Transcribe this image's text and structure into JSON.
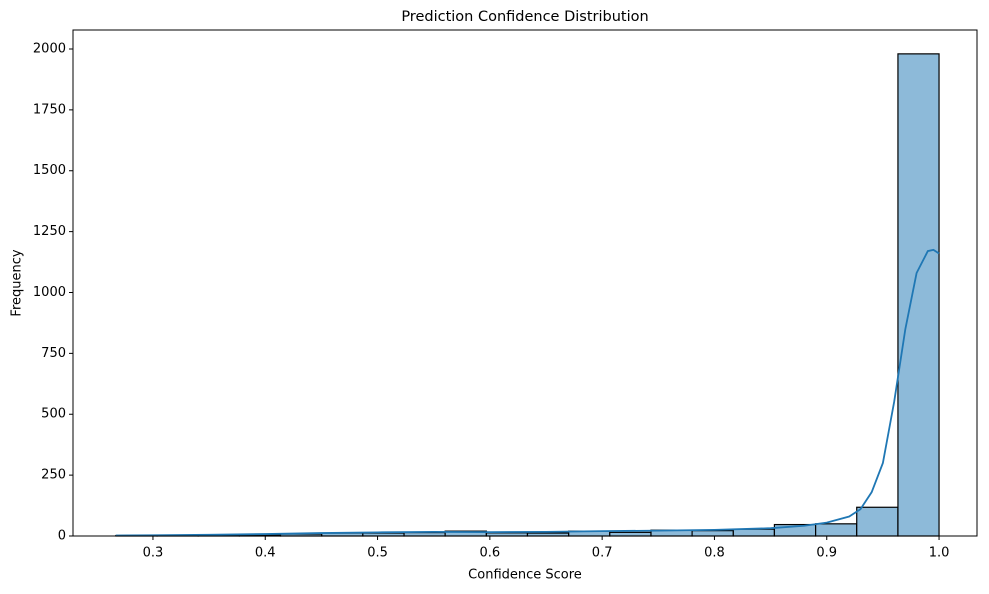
{
  "chart_data": {
    "type": "histogram",
    "title": "Prediction Confidence Distribution",
    "x_label": "Confidence Score",
    "y_label": "Frequency",
    "bins": [
      0.267,
      0.3037,
      0.3403,
      0.377,
      0.4136,
      0.4503,
      0.4869,
      0.5236,
      0.5602,
      0.5969,
      0.6335,
      0.6702,
      0.7068,
      0.7435,
      0.7801,
      0.8168,
      0.8534,
      0.8901,
      0.9267,
      0.9634,
      1.0
    ],
    "values": [
      2,
      1,
      3,
      5,
      8,
      12,
      12,
      14,
      20,
      13,
      12,
      20,
      15,
      24,
      22,
      28,
      47,
      50,
      118,
      1980
    ],
    "color": "#8dbad9",
    "edgecolor": "#000000",
    "kde": {
      "x": [
        0.267,
        0.3,
        0.35,
        0.4,
        0.45,
        0.5,
        0.55,
        0.6,
        0.65,
        0.7,
        0.75,
        0.8,
        0.85,
        0.88,
        0.9,
        0.92,
        0.93,
        0.94,
        0.95,
        0.96,
        0.97,
        0.98,
        0.99,
        0.995,
        1.0
      ],
      "y": [
        2,
        3,
        5,
        8,
        12,
        15,
        17,
        16,
        17,
        20,
        22,
        25,
        32,
        42,
        55,
        80,
        110,
        180,
        300,
        550,
        850,
        1080,
        1170,
        1175,
        1160
      ],
      "color": "#1f77b4"
    },
    "xlim": [
      0.2288,
      1.0338
    ],
    "ylim": [
      0,
      2078
    ],
    "xticks": [
      0.3,
      0.4,
      0.5,
      0.6,
      0.7,
      0.8,
      0.9,
      {
        "value": 1.0,
        "label": "1.0"
      }
    ],
    "yticks": [
      0,
      250,
      500,
      750,
      1000,
      1250,
      1500,
      1750,
      2000
    ]
  }
}
